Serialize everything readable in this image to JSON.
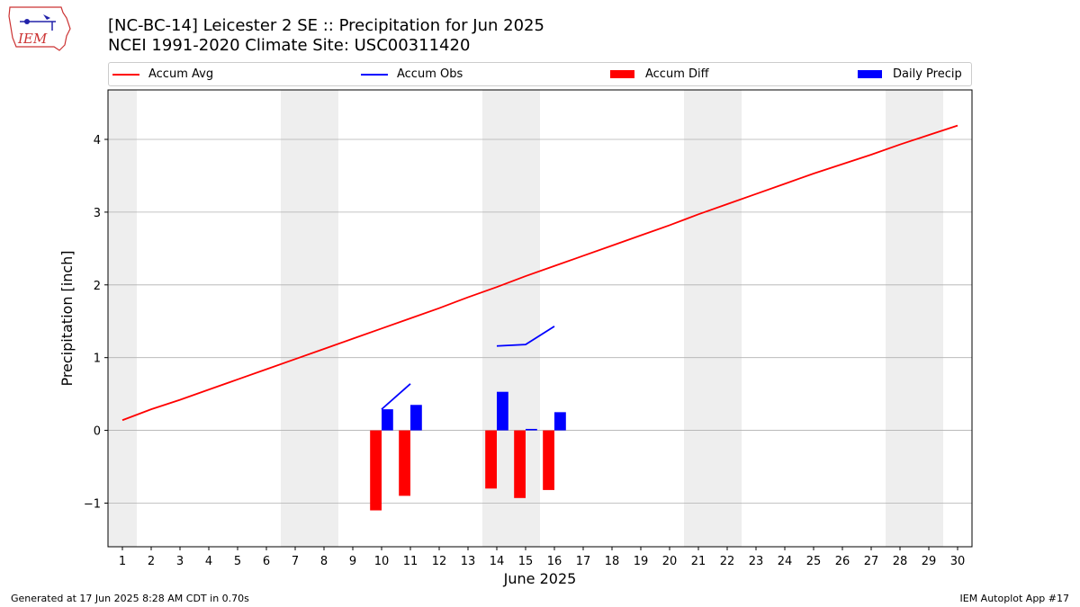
{
  "title": {
    "line1": "[NC-BC-14] Leicester 2 SE :: Precipitation for Jun 2025",
    "line2": "NCEI 1991-2020 Climate Site: USC00311420"
  },
  "logo_text": "IEM",
  "legend": {
    "accum_avg": "Accum Avg",
    "accum_obs": "Accum Obs",
    "accum_diff": "Accum Diff",
    "daily_precip": "Daily Precip"
  },
  "footer": {
    "generated": "Generated at 17 Jun 2025 8:28 AM CDT in 0.70s",
    "app": "IEM Autoplot App #17"
  },
  "colors": {
    "avg": "#ff0000",
    "obs": "#0000ff",
    "diff": "#ff0000",
    "daily": "#0000ff",
    "weekend_shade": "#eeeeee",
    "grid": "#b0b0b0"
  },
  "chart_data": {
    "type": "bar",
    "xlabel": "June 2025",
    "ylabel": "Precipitation [inch]",
    "xlim": [
      0.5,
      30.5
    ],
    "ylim": [
      -1.6,
      4.68
    ],
    "x_ticks": [
      1,
      2,
      3,
      4,
      5,
      6,
      7,
      8,
      9,
      10,
      11,
      12,
      13,
      14,
      15,
      16,
      17,
      18,
      19,
      20,
      21,
      22,
      23,
      24,
      25,
      26,
      27,
      28,
      29,
      30
    ],
    "y_ticks": [
      -1,
      0,
      1,
      2,
      3,
      4
    ],
    "grid": "horizontal",
    "legend_position": "top",
    "weekend_days": [
      1,
      7,
      8,
      14,
      15,
      21,
      22,
      28,
      29
    ],
    "series": [
      {
        "name": "Accum Avg",
        "kind": "line",
        "x": [
          1,
          2,
          3,
          4,
          5,
          6,
          7,
          8,
          9,
          10,
          11,
          12,
          13,
          14,
          15,
          16,
          17,
          18,
          19,
          20,
          21,
          22,
          23,
          24,
          25,
          26,
          27,
          28,
          29,
          30
        ],
        "values": [
          0.14,
          0.29,
          0.42,
          0.56,
          0.7,
          0.84,
          0.98,
          1.12,
          1.26,
          1.4,
          1.54,
          1.68,
          1.83,
          1.97,
          2.12,
          2.26,
          2.4,
          2.54,
          2.68,
          2.82,
          2.97,
          3.11,
          3.25,
          3.39,
          3.53,
          3.66,
          3.79,
          3.93,
          4.06,
          4.19
        ]
      },
      {
        "name": "Accum Obs",
        "kind": "line",
        "segments": [
          {
            "x": [
              10,
              11
            ],
            "values": [
              0.29,
              0.64
            ]
          },
          {
            "x": [
              14,
              15,
              16
            ],
            "values": [
              1.16,
              1.18,
              1.43
            ]
          }
        ]
      },
      {
        "name": "Accum Diff",
        "kind": "bar",
        "x": [
          10,
          11,
          14,
          15,
          16
        ],
        "values": [
          -1.1,
          -0.9,
          -0.8,
          -0.93,
          -0.82
        ]
      },
      {
        "name": "Daily Precip",
        "kind": "bar",
        "x": [
          10,
          11,
          14,
          15,
          16
        ],
        "values": [
          0.29,
          0.35,
          0.53,
          0.02,
          0.25
        ]
      }
    ]
  }
}
